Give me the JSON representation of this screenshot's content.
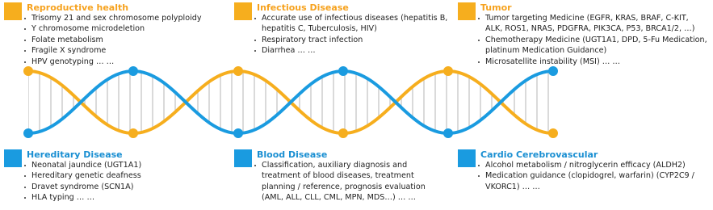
{
  "sections": [
    {
      "title": "Reproductive health",
      "items": [
        "Trisomy 21 and sex chromosome polyploidy",
        "Y chromosome microdeletion",
        "Folate metabolism",
        "Fragile X syndrome",
        "HPV genotyping … …"
      ]
    },
    {
      "title": "Infectious Disease",
      "items": [
        "Accurate use of infectious diseases (hepatitis B, hepatitis C, Tuberculosis, HIV)",
        "Respiratory tract infection",
        "Diarrhea … …"
      ]
    },
    {
      "title": "Tumor",
      "items": [
        "Tumor targeting Medicine (EGFR, KRAS, BRAF, C-KIT, ALK, ROS1, NRAS, PDGFRA, PIK3CA, P53, BRCA1/2, …)",
        "Chemotherapy Medicine (UGT1A1, DPD, 5-Fu Medication, platinum Medication Guidance)",
        "Microsatellite instability (MSI) … …"
      ]
    },
    {
      "title": "Hereditary Disease",
      "items": [
        "Neonatal jaundice (UGT1A1)",
        "Hereditary genetic deafness",
        "Dravet syndrome (SCN1A)",
        "HLA typing … …"
      ]
    },
    {
      "title": "Blood Disease",
      "items": [
        "Classification, auxiliary diagnosis and treatment of blood diseases, treatment planning / reference, prognosis evaluation (AML, ALL, CLL, CML, MPN, MDS…) … …"
      ]
    },
    {
      "title": "Cardio Cerebrovascular",
      "items": [
        "Alcohol metabolism / nitroglycerin efficacy (ALDH2)",
        "Medication guidance (clopidogrel, warfarin) (CYP2C9 / VKORC1) … …"
      ]
    }
  ]
}
